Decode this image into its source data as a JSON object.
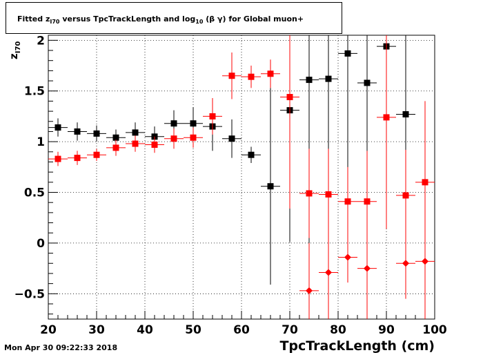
{
  "title": {
    "prefix": "Fitted  z",
    "z_sub": "I70",
    "middle": "  versus TpcTrackLength and log",
    "log_sub": "10",
    "suffix": " (β γ) for Global muon+"
  },
  "ylabel": {
    "main": "z",
    "sub": "I70"
  },
  "xlabel": "TpcTrackLength (cm)",
  "timestamp": "Mon Apr 30 09:22:33 2018",
  "colors": {
    "black_series": "#000000",
    "red_series": "#ff0000",
    "grid": "#000000"
  },
  "chart_data": {
    "type": "scatter",
    "title": "Fitted z_I70 versus TpcTrackLength and log10 (β γ) for Global muon+",
    "xlabel": "TpcTrackLength (cm)",
    "ylabel": "z_I70",
    "xlim": [
      20,
      100
    ],
    "ylim": [
      -0.75,
      2.05
    ],
    "x_ticks": [
      20,
      30,
      40,
      50,
      60,
      70,
      80,
      90,
      100
    ],
    "y_ticks": [
      -0.5,
      0,
      0.5,
      1,
      1.5,
      2
    ],
    "y_tick_labels": [
      "−0.5",
      "0",
      "0.5",
      "1",
      "1.5",
      "2"
    ],
    "grid": true,
    "x_error_halfwidth": 2,
    "series": [
      {
        "marker": "square",
        "color": "#000000",
        "points": [
          {
            "x": 22,
            "y": 1.14,
            "err": 0.09
          },
          {
            "x": 26,
            "y": 1.1,
            "err": 0.09
          },
          {
            "x": 30,
            "y": 1.08,
            "err": 0.08
          },
          {
            "x": 34,
            "y": 1.04,
            "err": 0.08
          },
          {
            "x": 38,
            "y": 1.09,
            "err": 0.1
          },
          {
            "x": 42,
            "y": 1.05,
            "err": 0.1
          },
          {
            "x": 46,
            "y": 1.18,
            "err": 0.13
          },
          {
            "x": 50,
            "y": 1.18,
            "err": 0.16
          },
          {
            "x": 54,
            "y": 1.15,
            "err": 0.24
          },
          {
            "x": 58,
            "y": 1.03,
            "err": 0.19
          },
          {
            "x": 62,
            "y": 0.87,
            "err": 0.08
          },
          {
            "x": 66,
            "y": 0.56,
            "err": 0.97
          },
          {
            "x": 70,
            "y": 1.31,
            "err": 1.3
          },
          {
            "x": 74,
            "y": 1.61,
            "err": 1.8
          },
          {
            "x": 78,
            "y": 1.62,
            "err": 1.8
          },
          {
            "x": 82,
            "y": 1.87,
            "err": 1.8
          },
          {
            "x": 86,
            "y": 1.58,
            "err": 1.8
          },
          {
            "x": 90,
            "y": 1.94,
            "err": 1.8
          },
          {
            "x": 94,
            "y": 1.27,
            "err": 1.8
          }
        ]
      },
      {
        "marker": "square",
        "color": "#ff0000",
        "points": [
          {
            "x": 22,
            "y": 0.83,
            "err": 0.07
          },
          {
            "x": 26,
            "y": 0.84,
            "err": 0.07
          },
          {
            "x": 30,
            "y": 0.87,
            "err": 0.06
          },
          {
            "x": 34,
            "y": 0.94,
            "err": 0.08
          },
          {
            "x": 38,
            "y": 0.98,
            "err": 0.08
          },
          {
            "x": 42,
            "y": 0.97,
            "err": 0.08
          },
          {
            "x": 46,
            "y": 1.03,
            "err": 0.1
          },
          {
            "x": 50,
            "y": 1.04,
            "err": 0.1
          },
          {
            "x": 54,
            "y": 1.25,
            "err": 0.18
          },
          {
            "x": 58,
            "y": 1.65,
            "err": 0.23
          },
          {
            "x": 62,
            "y": 1.64,
            "err": 0.11
          },
          {
            "x": 66,
            "y": 1.67,
            "err": 0.14
          },
          {
            "x": 70,
            "y": 1.44,
            "err": 1.1
          },
          {
            "x": 74,
            "y": 0.49,
            "err": 0.44
          },
          {
            "x": 78,
            "y": 0.48,
            "err": 0.45
          },
          {
            "x": 82,
            "y": 0.41,
            "err": 0.34
          },
          {
            "x": 86,
            "y": 0.41,
            "err": 0.5
          },
          {
            "x": 90,
            "y": 1.24,
            "err": 1.1
          },
          {
            "x": 94,
            "y": 0.47,
            "err": 0.45
          },
          {
            "x": 98,
            "y": 0.6,
            "err": 0.8
          }
        ]
      },
      {
        "marker": "diamond",
        "color": "#ff0000",
        "points": [
          {
            "x": 74,
            "y": -0.47,
            "err": 0.47
          },
          {
            "x": 78,
            "y": -0.29,
            "err": 0.5
          },
          {
            "x": 82,
            "y": -0.14,
            "err": 0.25
          },
          {
            "x": 86,
            "y": -0.25,
            "err": 0.5
          },
          {
            "x": 94,
            "y": -0.2,
            "err": 0.35
          },
          {
            "x": 98,
            "y": -0.18,
            "err": 0.6
          }
        ]
      }
    ]
  }
}
